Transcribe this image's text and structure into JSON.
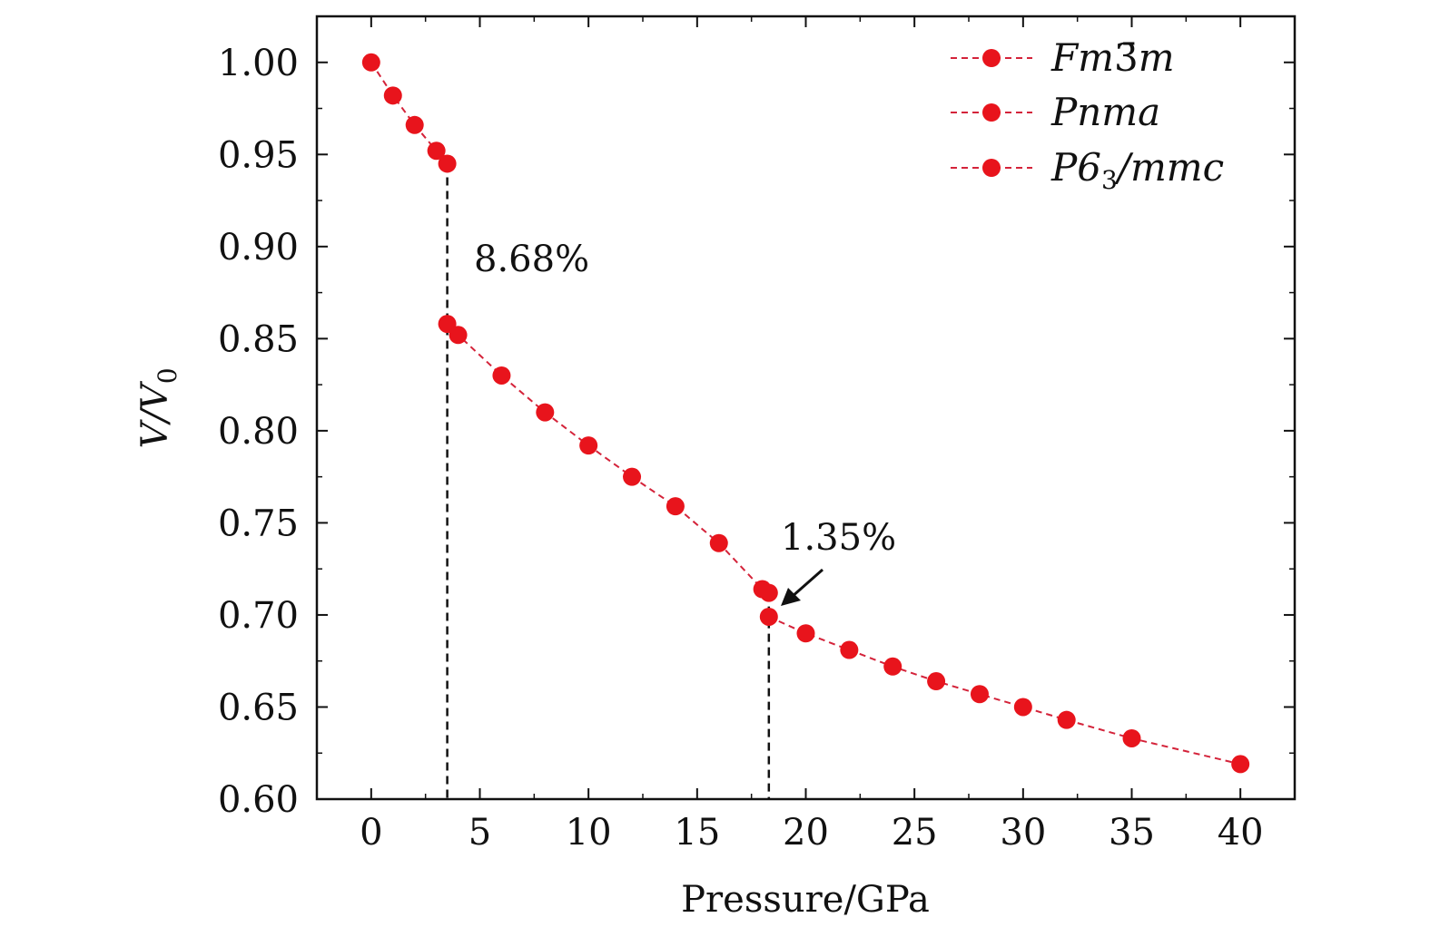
{
  "chart_data": {
    "type": "line",
    "xlabel": "Pressure/GPa",
    "ylabel": "V/V",
    "ylabel_subscript": "0",
    "xlim": [
      -2.5,
      42.5
    ],
    "ylim": [
      0.6,
      1.025
    ],
    "xticks": [
      0,
      5,
      10,
      15,
      20,
      25,
      30,
      35,
      40
    ],
    "yticks": [
      0.6,
      0.65,
      0.7,
      0.75,
      0.8,
      0.85,
      0.9,
      0.95,
      1.0
    ],
    "xtick_labels": [
      "0",
      "5",
      "10",
      "15",
      "20",
      "25",
      "30",
      "35",
      "40"
    ],
    "ytick_labels": [
      "0.60",
      "0.65",
      "0.70",
      "0.75",
      "0.80",
      "0.85",
      "0.90",
      "0.95",
      "1.00"
    ],
    "legend_position": "top-right",
    "marker_color": "#e8141c",
    "line_color": "#d4233a",
    "series": [
      {
        "name": "Fm3̄m",
        "name_main": "Fm",
        "name_bar": "3̄",
        "name_tail": "m",
        "x": [
          0,
          1,
          2,
          3,
          3.5
        ],
        "y": [
          1.0,
          0.982,
          0.966,
          0.952,
          0.945
        ]
      },
      {
        "name": "Pnma",
        "name_main": "Pnma",
        "x": [
          3.5,
          4,
          6,
          8,
          10,
          12,
          14,
          16,
          18,
          18.3
        ],
        "y": [
          0.858,
          0.852,
          0.83,
          0.81,
          0.792,
          0.775,
          0.759,
          0.739,
          0.714,
          0.712
        ]
      },
      {
        "name": "P6₃/mmc",
        "name_main": "P6",
        "name_sub": "3",
        "name_tail": "/mmc",
        "x": [
          18.3,
          20,
          22,
          24,
          26,
          28,
          30,
          32,
          35,
          40
        ],
        "y": [
          0.699,
          0.69,
          0.681,
          0.672,
          0.664,
          0.657,
          0.65,
          0.643,
          0.633,
          0.619
        ]
      }
    ],
    "annotations": [
      {
        "text": "8.68%",
        "x_transition": 3.5,
        "y_top": 0.945
      },
      {
        "text": "1.35%",
        "x_transition": 18.3,
        "y_top": 0.712
      }
    ]
  }
}
